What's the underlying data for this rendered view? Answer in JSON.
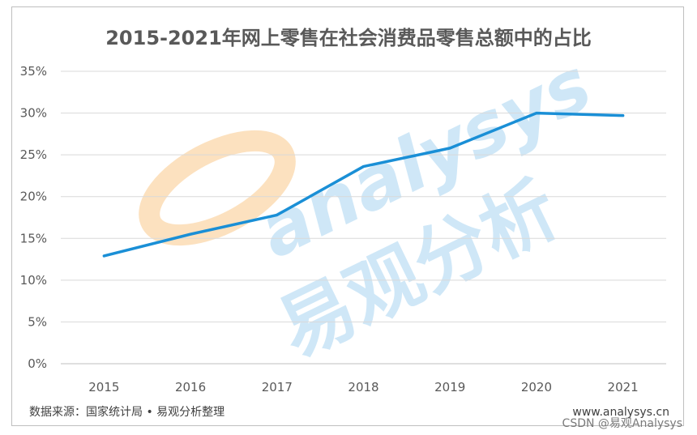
{
  "chart_data": {
    "type": "line",
    "title": "2015-2021年网上零售在社会消费品零售总额中的占比",
    "categories": [
      "2015",
      "2016",
      "2017",
      "2018",
      "2019",
      "2020",
      "2021"
    ],
    "series": [
      {
        "values": [
          12.9,
          15.5,
          17.8,
          23.6,
          25.8,
          30.0,
          29.7
        ]
      }
    ],
    "ylim": [
      0,
      35
    ],
    "yticks": [
      "0%",
      "5%",
      "10%",
      "15%",
      "20%",
      "25%",
      "30%",
      "35%"
    ],
    "grid": true,
    "legend": "none",
    "line_color": "#1a8fd6"
  },
  "footer": {
    "source": "数据来源：国家统计局 • 易观分析整理",
    "site": "www.analysys.cn"
  },
  "watermark": {
    "en": "analysys",
    "cn": "易观分析",
    "logo_color": "#f9c98b"
  },
  "overlay": {
    "csdn": "CSDN @易观Analysys"
  }
}
